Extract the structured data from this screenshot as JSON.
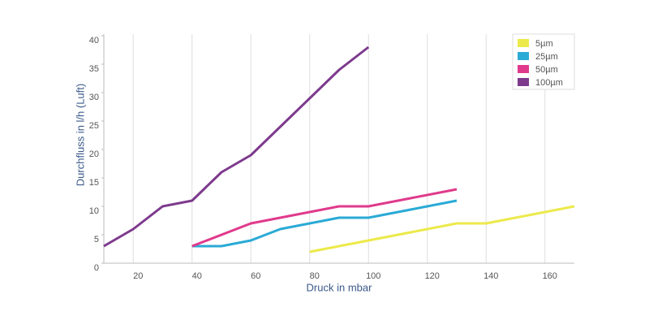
{
  "chart_data": {
    "type": "line",
    "x_label": "Druck in mbar",
    "y_label": "Durchfluss in l/h (Luft)",
    "xlim": [
      10,
      170
    ],
    "xticks": [
      20,
      40,
      60,
      80,
      100,
      120,
      140,
      160
    ],
    "ylim": [
      0,
      40
    ],
    "yticks": [
      0,
      5,
      10,
      15,
      20,
      25,
      30,
      35,
      40
    ],
    "grid": true,
    "legend": "top-right",
    "series": [
      {
        "name": "5µm",
        "color": "#ece94a",
        "x": [
          80,
          100,
          130,
          140,
          170
        ],
        "values": [
          2,
          4,
          7,
          7,
          10
        ]
      },
      {
        "name": "25µm",
        "color": "#2aaad6",
        "x": [
          40,
          50,
          60,
          70,
          80,
          90,
          100,
          110,
          120,
          130
        ],
        "values": [
          3,
          3,
          4,
          6,
          7,
          8,
          8,
          9,
          10,
          11
        ]
      },
      {
        "name": "50µm",
        "color": "#e03a8c",
        "x": [
          40,
          60,
          80,
          90,
          100,
          130
        ],
        "values": [
          3,
          7,
          9,
          10,
          10,
          13
        ]
      },
      {
        "name": "100µm",
        "color": "#7d3a8d",
        "x": [
          10,
          20,
          30,
          40,
          50,
          60,
          70,
          80,
          90,
          100
        ],
        "values": [
          3,
          6,
          10,
          11,
          16,
          19,
          24,
          29,
          34,
          38
        ]
      }
    ]
  }
}
